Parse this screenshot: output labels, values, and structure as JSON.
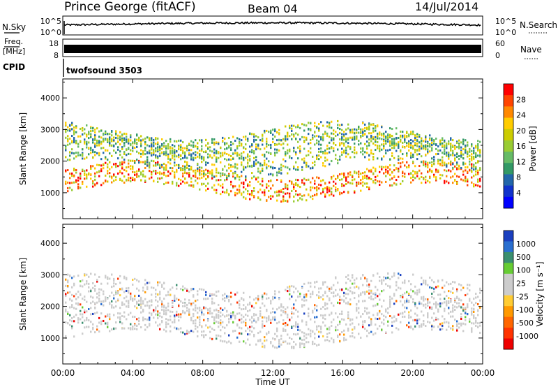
{
  "header": {
    "station": "Prince George (fitACF)",
    "beam": "Beam 04",
    "date": "14/Jul/2014"
  },
  "strip_panels": {
    "nsky_label": "N.Sky",
    "nsearch_label": "N.Search",
    "nsky_ticks": [
      "10^5",
      "10^0"
    ],
    "nsearch_ticks": [
      "10^5",
      "10^0"
    ],
    "freq_label_line1": "Freq.",
    "freq_label_line2": "[MHz]",
    "freq_ticks": [
      "18",
      "8"
    ],
    "nave_label": "Nave",
    "nave_ticks": [
      "60",
      "0"
    ],
    "cpid_label": "CPID",
    "cpid_value": "twofsound 3503"
  },
  "chart_data": [
    {
      "type": "heatmap",
      "name": "power",
      "ylabel": "Slant Range [km]",
      "xlabel": "Time UT",
      "ylim": [
        180,
        4600
      ],
      "xlim": [
        "00:00",
        "24:00"
      ],
      "y_ticks": [
        "1000",
        "2000",
        "3000",
        "4000"
      ],
      "x_ticks": [
        "00:00",
        "04:00",
        "08:00",
        "12:00",
        "16:00",
        "20:00",
        "00:00"
      ],
      "colorbar": {
        "label": "Power [dB]",
        "ticks": [
          "28",
          "24",
          "20",
          "16",
          "12",
          "8",
          "4"
        ],
        "colors": [
          "#ff0000",
          "#ff4400",
          "#ff8800",
          "#ffcc00",
          "#cccc00",
          "#99cc33",
          "#66bb66",
          "#339966",
          "#2266aa",
          "#1133cc",
          "#0000ff"
        ]
      }
    },
    {
      "type": "heatmap",
      "name": "velocity",
      "ylabel": "Slant Range [km]",
      "xlabel": "Time UT",
      "ylim": [
        180,
        4600
      ],
      "xlim": [
        "00:00",
        "24:00"
      ],
      "y_ticks": [
        "1000",
        "2000",
        "3000",
        "4000"
      ],
      "x_ticks": [
        "00:00",
        "04:00",
        "08:00",
        "12:00",
        "16:00",
        "20:00",
        "00:00"
      ],
      "colorbar": {
        "label": "Velocity [m s⁻¹]",
        "ticks": [
          "1000",
          "500",
          "100",
          "25",
          "-25",
          "-100",
          "-500",
          "-1000"
        ],
        "colors": [
          "#1a3fbf",
          "#2a6fd0",
          "#3a8f6f",
          "#66cc33",
          "#cccccc",
          "#cccccc",
          "#ffcc33",
          "#ff9900",
          "#ff6600",
          "#ff3300",
          "#ee0000"
        ]
      }
    }
  ]
}
